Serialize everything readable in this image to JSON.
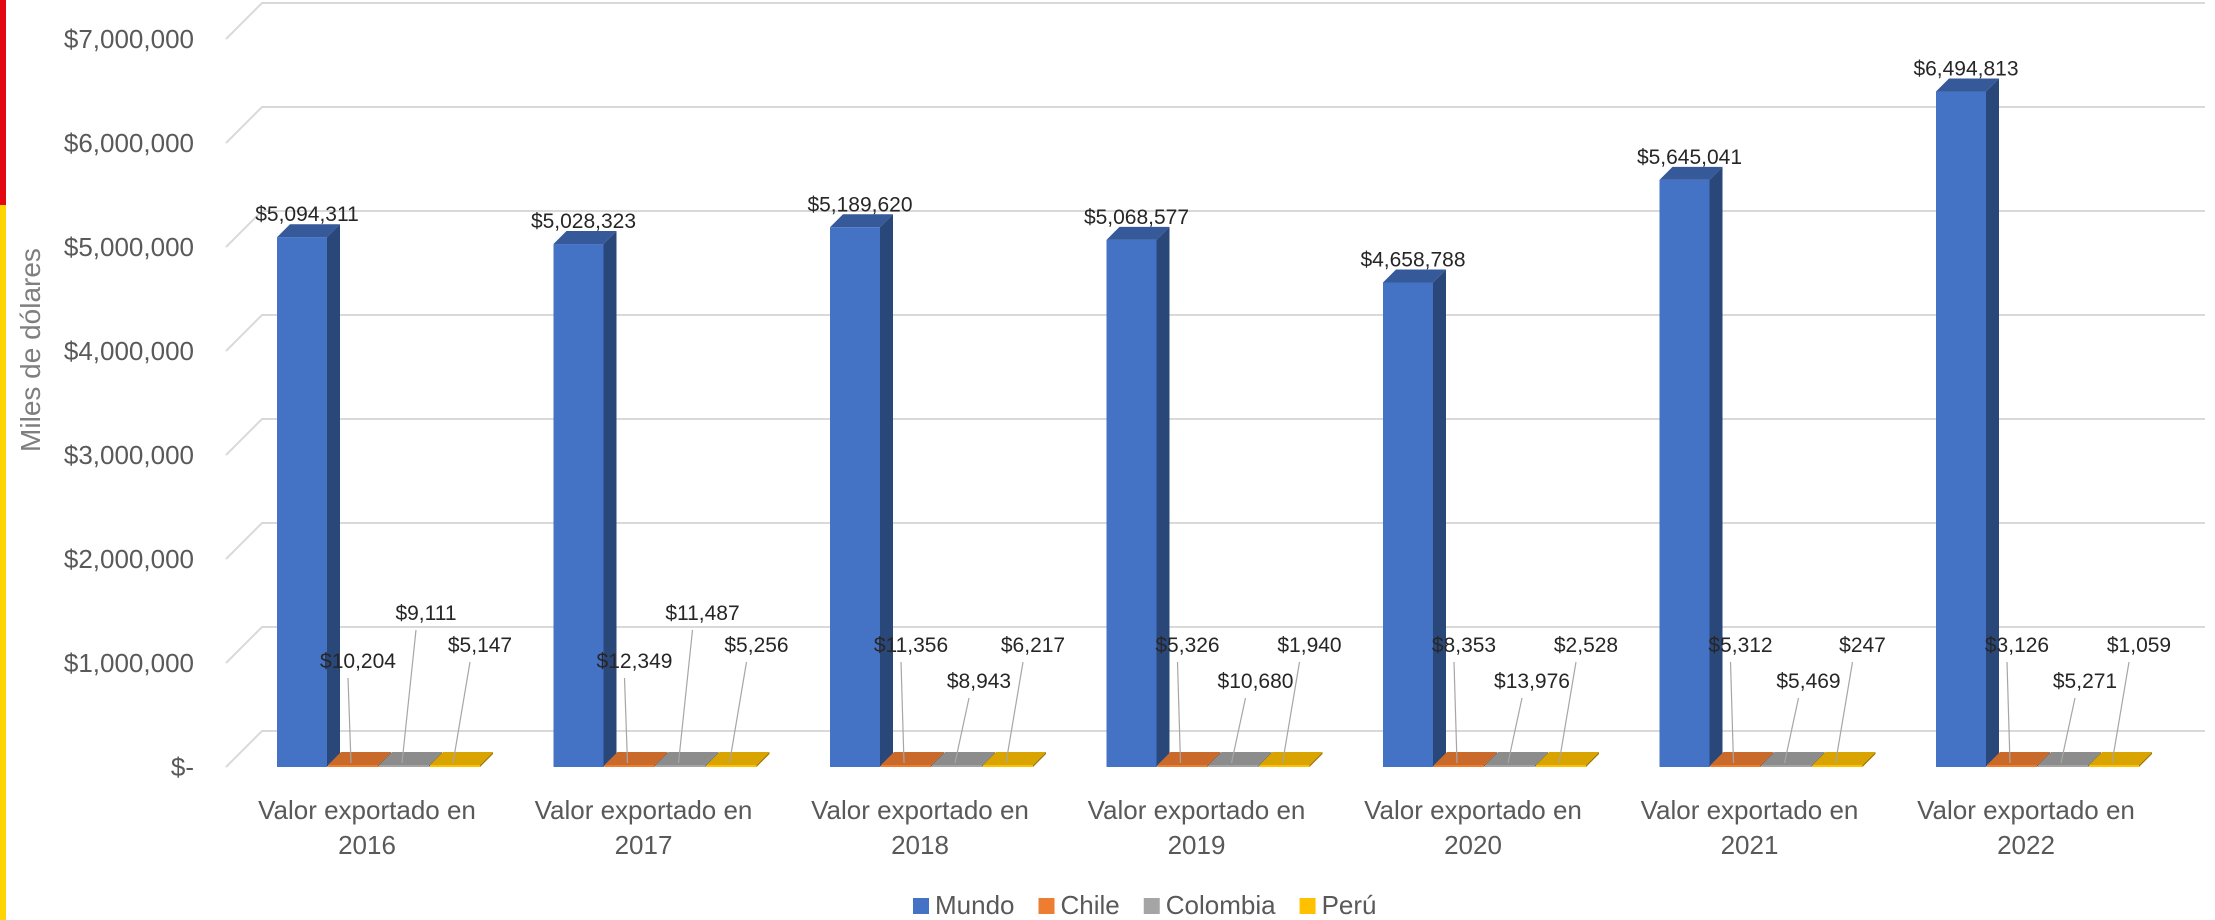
{
  "chart_data": {
    "type": "bar",
    "ylabel": "Miles de dólares",
    "ylim": [
      0,
      7000000
    ],
    "y_ticks": [
      "$-",
      "$1,000,000",
      "$2,000,000",
      "$3,000,000",
      "$4,000,000",
      "$5,000,000",
      "$6,000,000",
      "$7,000,000"
    ],
    "categories": [
      [
        "Valor exportado en",
        "2016"
      ],
      [
        "Valor exportado en",
        "2017"
      ],
      [
        "Valor exportado en",
        "2018"
      ],
      [
        "Valor exportado en",
        "2019"
      ],
      [
        "Valor exportado en",
        "2020"
      ],
      [
        "Valor exportado en",
        "2021"
      ],
      [
        "Valor exportado en",
        "2022"
      ]
    ],
    "series": [
      {
        "name": "Mundo",
        "color": "#4472c4",
        "values": [
          5094311,
          5028323,
          5189620,
          5068577,
          4658788,
          5645041,
          6494813
        ],
        "labels": [
          "$5,094,311",
          "$5,028,323",
          "$5,189,620",
          "$5,068,577",
          "$4,658,788",
          "$5,645,041",
          "$6,494,813"
        ]
      },
      {
        "name": "Chile",
        "color": "#ed7d31",
        "values": [
          10204,
          12349,
          11356,
          5326,
          8353,
          5312,
          3126
        ],
        "labels": [
          "$10,204",
          "$12,349",
          "$11,356",
          "$5,326",
          "$8,353",
          "$5,312",
          "$3,126"
        ]
      },
      {
        "name": "Colombia",
        "color": "#a5a5a5",
        "values": [
          9111,
          11487,
          8943,
          10680,
          13976,
          5469,
          5271
        ],
        "labels": [
          "$9,111",
          "$11,487",
          "$8,943",
          "$10,680",
          "$13,976",
          "$5,469",
          "$5,271"
        ]
      },
      {
        "name": "Perú",
        "color": "#ffc000",
        "values": [
          5147,
          5256,
          6217,
          1940,
          2528,
          247,
          1059
        ],
        "labels": [
          "$5,147",
          "$5,256",
          "$6,217",
          "$1,940",
          "$2,528",
          "$247",
          "$1,059"
        ]
      }
    ],
    "grid": true,
    "legend_position": "bottom"
  }
}
